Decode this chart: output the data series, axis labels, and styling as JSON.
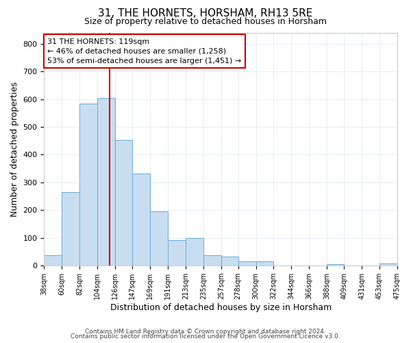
{
  "title": "31, THE HORNETS, HORSHAM, RH13 5RE",
  "subtitle": "Size of property relative to detached houses in Horsham",
  "xlabel": "Distribution of detached houses by size in Horsham",
  "ylabel": "Number of detached properties",
  "bar_color": "#c9ddf0",
  "bar_edge_color": "#6aaad4",
  "background_color": "#ffffff",
  "plot_bg_color": "#ffffff",
  "grid_color": "#e8eef7",
  "vline_x": 119,
  "vline_color": "#cc0000",
  "annotation_text": "31 THE HORNETS: 119sqm\n← 46% of detached houses are smaller (1,258)\n53% of semi-detached houses are larger (1,451) →",
  "annotation_box_edge": "#cc0000",
  "footnote1": "Contains HM Land Registry data © Crown copyright and database right 2024.",
  "footnote2": "Contains public sector information licensed under the Open Government Licence v3.0.",
  "bin_edges": [
    38,
    60,
    82,
    104,
    126,
    147,
    169,
    191,
    213,
    235,
    257,
    278,
    300,
    322,
    344,
    366,
    388,
    409,
    431,
    453,
    475
  ],
  "bin_heights": [
    38,
    265,
    585,
    605,
    453,
    333,
    196,
    91,
    100,
    38,
    33,
    15,
    15,
    0,
    0,
    0,
    5,
    0,
    0,
    7
  ],
  "ylim": [
    0,
    840
  ],
  "yticks": [
    0,
    100,
    200,
    300,
    400,
    500,
    600,
    700,
    800
  ]
}
